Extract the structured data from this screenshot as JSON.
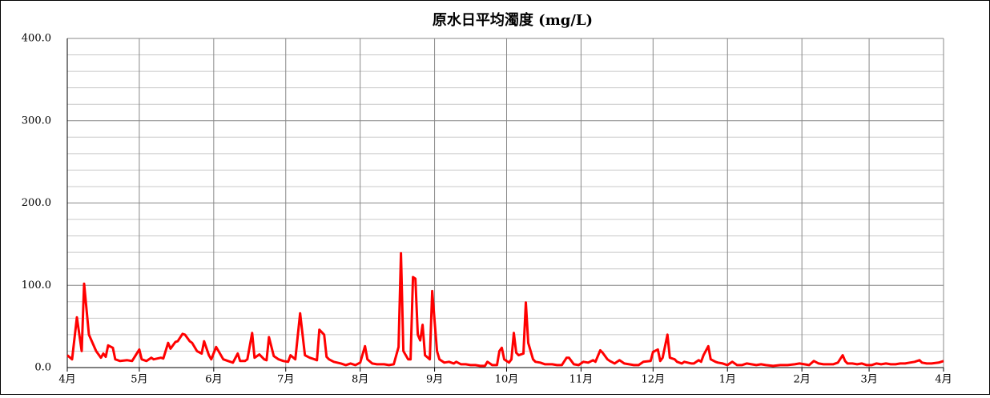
{
  "chart_data": {
    "type": "line",
    "title": "原水日平均濁度 (mg/L)",
    "xlim": [
      0,
      365
    ],
    "xticks": [
      {
        "value": 0,
        "label": "4月"
      },
      {
        "value": 30,
        "label": "5月"
      },
      {
        "value": 61,
        "label": "6月"
      },
      {
        "value": 91,
        "label": "7月"
      },
      {
        "value": 122,
        "label": "8月"
      },
      {
        "value": 153,
        "label": "9月"
      },
      {
        "value": 183,
        "label": "10月"
      },
      {
        "value": 214,
        "label": "11月"
      },
      {
        "value": 244,
        "label": "12月"
      },
      {
        "value": 275,
        "label": "1月"
      },
      {
        "value": 306,
        "label": "2月"
      },
      {
        "value": 334,
        "label": "3月"
      },
      {
        "value": 365,
        "label": "4月"
      }
    ],
    "ylim": [
      0,
      400
    ],
    "yticks": [
      {
        "value": 0,
        "label": "0.0"
      },
      {
        "value": 100,
        "label": "100.0"
      },
      {
        "value": 200,
        "label": "200.0"
      },
      {
        "value": 300,
        "label": "300.0"
      },
      {
        "value": 400,
        "label": "400.0"
      }
    ],
    "yminorticks": [
      20,
      40,
      60,
      80,
      120,
      140,
      160,
      180,
      220,
      240,
      260,
      280,
      320,
      340,
      360,
      380
    ],
    "grid": true,
    "series": [
      {
        "color": "#ff0000",
        "x": [
          0,
          2,
          4,
          6,
          7,
          9,
          12,
          14,
          15,
          16,
          17,
          19,
          20,
          22,
          25,
          27,
          30,
          31,
          33,
          35,
          36,
          39,
          40,
          42,
          43,
          45,
          46,
          48,
          49,
          51,
          52,
          54,
          56,
          57,
          59,
          60,
          62,
          63,
          65,
          67,
          69,
          71,
          72,
          74,
          75,
          77,
          78,
          80,
          82,
          83,
          84,
          86,
          88,
          90,
          92,
          93,
          95,
          97,
          99,
          101,
          103,
          104,
          105,
          107,
          108,
          109,
          111,
          114,
          116,
          118,
          120,
          122,
          124,
          125,
          127,
          129,
          132,
          134,
          136,
          138,
          139,
          140,
          142,
          143,
          144,
          145,
          146,
          147,
          148,
          149,
          151,
          152,
          154,
          155,
          157,
          159,
          161,
          162,
          164,
          166,
          168,
          170,
          172,
          174,
          175,
          177,
          179,
          180,
          181,
          182,
          184,
          185,
          186,
          187,
          188,
          190,
          191,
          192,
          194,
          195,
          197,
          199,
          202,
          204,
          206,
          208,
          209,
          211,
          213,
          215,
          217,
          219,
          220,
          222,
          223,
          225,
          226,
          228,
          230,
          232,
          234,
          236,
          238,
          240,
          243,
          244,
          246,
          247,
          248,
          250,
          251,
          253,
          254,
          256,
          257,
          260,
          261,
          263,
          264,
          265,
          267,
          268,
          270,
          271,
          273,
          275,
          277,
          279,
          281,
          283,
          285,
          287,
          289,
          291,
          294,
          297,
          300,
          303,
          305,
          307,
          309,
          311,
          313,
          315,
          319,
          321,
          323,
          324,
          325,
          327,
          329,
          331,
          333,
          335,
          337,
          339,
          341,
          343,
          345,
          347,
          349,
          351,
          353,
          355,
          356,
          358,
          360,
          363,
          365
        ],
        "values": [
          15,
          10,
          61,
          20,
          102,
          40,
          20,
          12,
          17,
          13,
          27,
          24,
          10,
          8,
          9,
          8,
          22,
          10,
          8,
          12,
          10,
          12,
          11,
          30,
          23,
          31,
          32,
          41,
          40,
          32,
          30,
          20,
          17,
          32,
          15,
          10,
          25,
          20,
          10,
          8,
          6,
          17,
          8,
          8,
          10,
          42,
          12,
          16,
          10,
          9,
          37,
          14,
          10,
          8,
          7,
          15,
          10,
          66,
          15,
          12,
          10,
          9,
          46,
          40,
          13,
          10,
          7,
          5,
          3,
          5,
          3,
          6,
          26,
          10,
          5,
          4,
          4,
          3,
          4,
          25,
          139,
          20,
          10,
          10,
          110,
          108,
          40,
          33,
          52,
          15,
          10,
          93,
          20,
          10,
          6,
          7,
          5,
          7,
          4,
          4,
          3,
          3,
          2,
          2,
          7,
          3,
          3,
          20,
          24,
          10,
          6,
          10,
          42,
          18,
          15,
          17,
          79,
          30,
          10,
          7,
          6,
          4,
          4,
          3,
          3,
          12,
          12,
          4,
          3,
          7,
          6,
          9,
          7,
          21,
          18,
          10,
          8,
          5,
          9,
          5,
          4,
          3,
          3,
          7,
          8,
          19,
          22,
          8,
          12,
          40,
          12,
          10,
          7,
          5,
          7,
          5,
          5,
          9,
          7,
          15,
          26,
          10,
          7,
          6,
          5,
          3,
          7,
          3,
          3,
          5,
          4,
          3,
          4,
          3,
          2,
          3,
          3,
          4,
          5,
          4,
          3,
          8,
          5,
          4,
          4,
          6,
          15,
          8,
          5,
          5,
          4,
          5,
          3,
          3,
          5,
          4,
          5,
          4,
          4,
          5,
          5,
          6,
          7,
          9,
          6,
          5,
          5,
          6,
          8
        ]
      }
    ]
  }
}
